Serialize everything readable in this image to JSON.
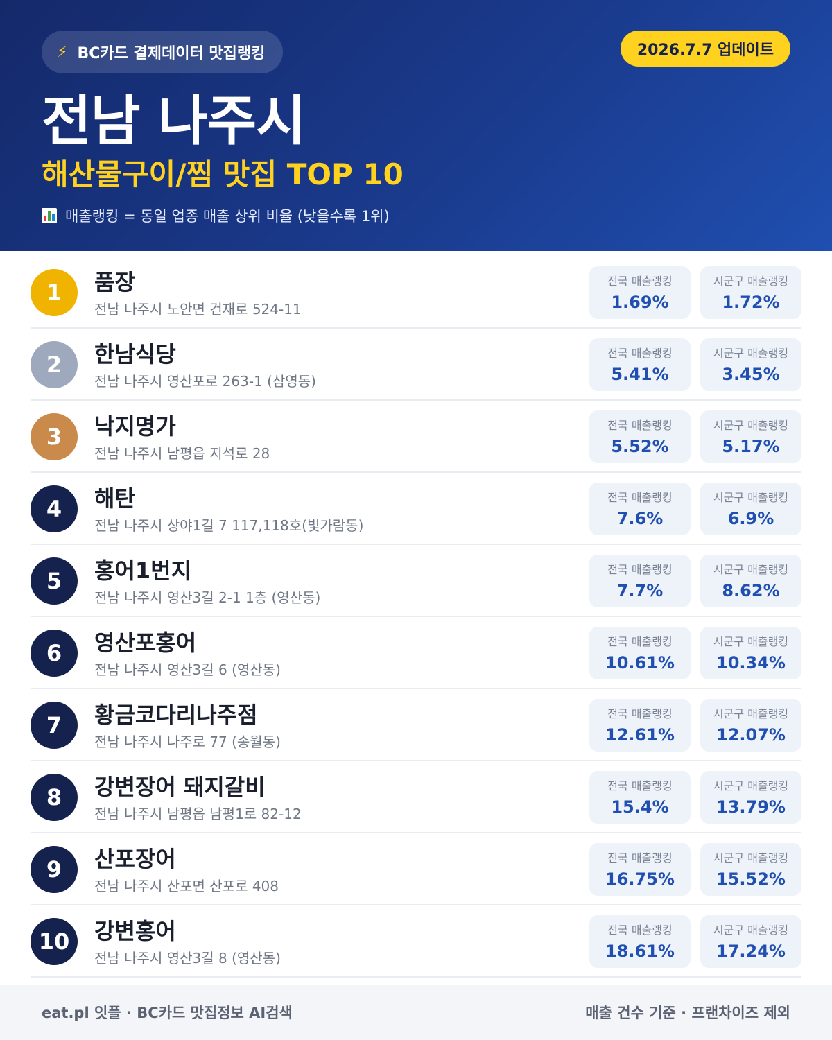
{
  "header": {
    "source_label": "BC카드 결제데이터 맛집랭킹",
    "source_icon": "lightning-icon",
    "update_label": "2026.7.7 업데이트",
    "region_title": "전남 나주시",
    "category_title": "해산물구이/찜 맛집 TOP 10",
    "legend_icon": "bar-chart-icon",
    "legend_text": "매출랭킹 = 동일 업종 매출 상위 비율 (낮을수록 1위)"
  },
  "colors": {
    "header_gradient_start": "#14296a",
    "header_gradient_end": "#1f4fb0",
    "accent_yellow": "#ffd21f",
    "rank_gold": "#f0b400",
    "rank_silver": "#9ea9bd",
    "rank_bronze": "#c98a4b",
    "rank_default": "#14224d",
    "value_blue": "#1f4fb0"
  },
  "labels": {
    "national": "전국 매출랭킹",
    "local": "시군구 매출랭킹"
  },
  "restaurants": [
    {
      "rank": "1",
      "name": "품장",
      "address": "전남 나주시 노안면 건재로 524-11",
      "national": "1.69%",
      "local": "1.72%"
    },
    {
      "rank": "2",
      "name": "한남식당",
      "address": "전남 나주시 영산포로 263-1 (삼영동)",
      "national": "5.41%",
      "local": "3.45%"
    },
    {
      "rank": "3",
      "name": "낙지명가",
      "address": "전남 나주시 남평읍 지석로 28",
      "national": "5.52%",
      "local": "5.17%"
    },
    {
      "rank": "4",
      "name": "해탄",
      "address": "전남 나주시 상야1길 7 117,118호(빛가람동)",
      "national": "7.6%",
      "local": "6.9%"
    },
    {
      "rank": "5",
      "name": "홍어1번지",
      "address": "전남 나주시 영산3길 2-1 1층 (영산동)",
      "national": "7.7%",
      "local": "8.62%"
    },
    {
      "rank": "6",
      "name": "영산포홍어",
      "address": "전남 나주시 영산3길 6 (영산동)",
      "national": "10.61%",
      "local": "10.34%"
    },
    {
      "rank": "7",
      "name": "황금코다리나주점",
      "address": "전남 나주시 나주로 77 (송월동)",
      "national": "12.61%",
      "local": "12.07%"
    },
    {
      "rank": "8",
      "name": "강변장어 돼지갈비",
      "address": "전남 나주시 남평읍 남평1로 82-12",
      "national": "15.4%",
      "local": "13.79%"
    },
    {
      "rank": "9",
      "name": "산포장어",
      "address": "전남 나주시 산포면 산포로 408",
      "national": "16.75%",
      "local": "15.52%"
    },
    {
      "rank": "10",
      "name": "강변홍어",
      "address": "전남 나주시 영산3길 8 (영산동)",
      "national": "18.61%",
      "local": "17.24%"
    }
  ],
  "footer": {
    "left": "eat.pl 잇플 · BC카드 맛집정보 AI검색",
    "right": "매출 건수 기준 · 프랜차이즈 제외"
  }
}
